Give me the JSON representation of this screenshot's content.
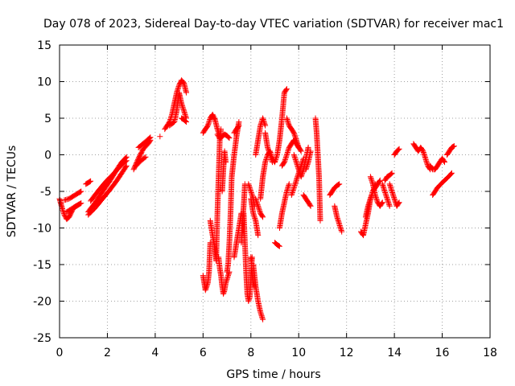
{
  "chart_data": {
    "type": "scatter",
    "title": "Day 078 of 2023, Sidereal Day-to-day VTEC variation (SDTVAR) for receiver mac1",
    "xlabel": "GPS time / hours",
    "ylabel": "SDTVAR / TECUs",
    "xlim": [
      0,
      18
    ],
    "ylim": [
      -25,
      15
    ],
    "xticks": [
      0,
      2,
      4,
      6,
      8,
      10,
      12,
      14,
      16,
      18
    ],
    "yticks": [
      -25,
      -20,
      -15,
      -10,
      -5,
      0,
      5,
      10,
      15
    ],
    "grid": true,
    "marker": "plus",
    "color": "#ff0000",
    "series": [
      {
        "name": "seg01",
        "x": [
          0.0,
          0.1,
          0.2,
          0.3,
          0.4,
          0.5,
          0.6,
          0.7,
          0.8
        ],
        "y": [
          -6.0,
          -7.2,
          -8.2,
          -8.8,
          -8.5,
          -7.8,
          -7.2,
          -7.0,
          -6.8
        ]
      },
      {
        "name": "seg02",
        "x": [
          0.2,
          0.4,
          0.6,
          0.8,
          0.9
        ],
        "y": [
          -6.2,
          -6.0,
          -5.6,
          -5.2,
          -5.0
        ]
      },
      {
        "name": "seg03",
        "x": [
          0.3,
          0.5,
          0.7,
          0.8,
          0.9
        ],
        "y": [
          -7.8,
          -7.4,
          -7.0,
          -6.8,
          -6.6
        ]
      },
      {
        "name": "seg04",
        "x": [
          1.2,
          1.5,
          1.8,
          2.1,
          2.4,
          2.6,
          2.8
        ],
        "y": [
          -7.8,
          -6.5,
          -5.0,
          -3.6,
          -2.0,
          -1.0,
          -0.3
        ]
      },
      {
        "name": "seg05",
        "x": [
          1.2,
          1.5,
          1.8,
          2.1,
          2.4,
          2.6,
          2.8
        ],
        "y": [
          -8.2,
          -7.2,
          -6.0,
          -4.8,
          -3.5,
          -2.5,
          -1.5
        ]
      },
      {
        "name": "seg06",
        "x": [
          1.3,
          1.6,
          1.9,
          2.2,
          2.5,
          2.8
        ],
        "y": [
          -6.3,
          -5.0,
          -3.8,
          -2.8,
          -1.7,
          -0.8
        ]
      },
      {
        "name": "seg07",
        "x": [
          1.1,
          1.2,
          1.3
        ],
        "y": [
          -4.0,
          -3.8,
          -3.6
        ]
      },
      {
        "name": "seg08",
        "x": [
          3.1,
          3.3,
          3.5,
          3.7,
          3.8
        ],
        "y": [
          -2.0,
          -0.5,
          0.8,
          1.5,
          2.0
        ]
      },
      {
        "name": "seg09",
        "x": [
          3.3,
          3.6,
          3.8
        ],
        "y": [
          1.0,
          1.8,
          2.4
        ]
      },
      {
        "name": "seg10",
        "x": [
          3.2,
          3.4,
          3.6
        ],
        "y": [
          -1.5,
          -0.8,
          -0.3
        ]
      },
      {
        "name": "seg11",
        "x": [
          4.2
        ],
        "y": [
          2.5
        ]
      },
      {
        "name": "seg12",
        "x": [
          4.4,
          4.6,
          4.7,
          4.8,
          4.9,
          5.0,
          5.1,
          5.2,
          5.3
        ],
        "y": [
          3.5,
          4.5,
          5.5,
          7.0,
          8.5,
          9.5,
          10.2,
          9.8,
          8.5
        ]
      },
      {
        "name": "seg13",
        "x": [
          4.6,
          4.8,
          4.9,
          5.0,
          5.1,
          5.2,
          5.3
        ],
        "y": [
          4.0,
          4.5,
          6.0,
          8.5,
          7.0,
          6.0,
          5.0
        ]
      },
      {
        "name": "seg14",
        "x": [
          5.1,
          5.2,
          5.3
        ],
        "y": [
          5.0,
          4.8,
          4.5
        ]
      },
      {
        "name": "seg15",
        "x": [
          6.0,
          6.1,
          6.2,
          6.3,
          6.4,
          6.5,
          6.6,
          6.7
        ],
        "y": [
          3.0,
          3.5,
          4.0,
          5.0,
          5.5,
          4.8,
          3.5,
          2.5
        ]
      },
      {
        "name": "seg16",
        "x": [
          6.6,
          6.7,
          6.8,
          6.9,
          7.0,
          7.1
        ],
        "y": [
          2.8,
          2.2,
          2.5,
          2.8,
          2.6,
          2.3
        ]
      },
      {
        "name": "seg17",
        "x": [
          6.0,
          6.05,
          6.1,
          6.15,
          6.2,
          6.25,
          6.3
        ],
        "y": [
          -16.5,
          -17.5,
          -18.5,
          -18.0,
          -17.5,
          -16.0,
          -12.0
        ]
      },
      {
        "name": "seg18",
        "x": [
          6.3,
          6.4,
          6.5,
          6.55,
          6.6,
          6.65,
          6.7,
          6.75
        ],
        "y": [
          -9.0,
          -11.0,
          -13.0,
          -14.5,
          -8.0,
          -3.0,
          2.0,
          3.5
        ]
      },
      {
        "name": "seg19",
        "x": [
          6.65,
          6.7,
          6.75,
          6.8,
          6.85,
          6.9,
          6.95,
          7.0,
          7.05,
          7.1
        ],
        "y": [
          -14.0,
          -15.5,
          -16.5,
          -18.0,
          -19.0,
          -18.5,
          -17.5,
          -17.0,
          -16.5,
          -16.0
        ]
      },
      {
        "name": "seg20",
        "x": [
          6.8,
          6.85,
          6.9,
          6.95
        ],
        "y": [
          -5.0,
          -2.0,
          0.5,
          -1.0
        ]
      },
      {
        "name": "seg21",
        "x": [
          7.0,
          7.05,
          7.1,
          7.15,
          7.2,
          7.3,
          7.4,
          7.5
        ],
        "y": [
          -16.0,
          -15.0,
          -12.0,
          -8.0,
          -3.0,
          0.0,
          2.5,
          4.5
        ]
      },
      {
        "name": "seg22",
        "x": [
          7.3,
          7.4,
          7.5,
          7.6
        ],
        "y": [
          -14.0,
          -12.0,
          -10.0,
          -8.0
        ]
      },
      {
        "name": "seg23",
        "x": [
          7.3,
          7.4,
          7.5
        ],
        "y": [
          3.0,
          3.5,
          4.0
        ]
      },
      {
        "name": "seg24",
        "x": [
          7.6,
          7.65,
          7.7,
          7.75
        ],
        "y": [
          -12.0,
          -9.0,
          -7.0,
          -4.0
        ]
      },
      {
        "name": "seg25",
        "x": [
          7.7,
          7.75,
          7.8,
          7.85,
          7.9,
          7.95,
          8.0,
          8.05
        ],
        "y": [
          -8.0,
          -12.0,
          -16.0,
          -19.0,
          -20.0,
          -19.5,
          -17.0,
          -14.0
        ]
      },
      {
        "name": "seg26",
        "x": [
          7.9,
          8.0,
          8.1,
          8.15
        ],
        "y": [
          -4.0,
          -5.0,
          -6.0,
          -7.0
        ]
      },
      {
        "name": "seg27",
        "x": [
          8.0,
          8.1,
          8.2,
          8.3
        ],
        "y": [
          -6.0,
          -8.0,
          -9.0,
          -11.0
        ]
      },
      {
        "name": "seg28",
        "x": [
          8.0,
          8.05,
          8.1,
          8.15
        ],
        "y": [
          -14.0,
          -16.0,
          -17.5,
          -18.0
        ]
      },
      {
        "name": "seg29",
        "x": [
          8.1,
          8.2,
          8.3,
          8.4,
          8.5
        ],
        "y": [
          -15.0,
          -18.0,
          -20.0,
          -21.5,
          -22.5
        ]
      },
      {
        "name": "seg30",
        "x": [
          8.2,
          8.3,
          8.4,
          8.5
        ],
        "y": [
          -6.0,
          -7.0,
          -8.0,
          -8.5
        ]
      },
      {
        "name": "seg31",
        "x": [
          8.2,
          8.3,
          8.4,
          8.5,
          8.6
        ],
        "y": [
          0.0,
          2.0,
          4.0,
          5.0,
          4.0
        ]
      },
      {
        "name": "seg32",
        "x": [
          8.4,
          8.5,
          8.6,
          8.7,
          8.8,
          8.9,
          9.0
        ],
        "y": [
          -6.0,
          -3.0,
          -1.0,
          0.0,
          0.5,
          -0.5,
          -1.0
        ]
      },
      {
        "name": "seg33",
        "x": [
          8.6,
          8.7,
          8.8,
          8.9
        ],
        "y": [
          3.0,
          1.0,
          0.0,
          -1.0
        ]
      },
      {
        "name": "seg34",
        "x": [
          8.9,
          9.0,
          9.1,
          9.2,
          9.3,
          9.4,
          9.5
        ],
        "y": [
          -0.5,
          -1.0,
          0.0,
          2.0,
          5.0,
          8.5,
          9.0
        ]
      },
      {
        "name": "seg35",
        "x": [
          9.0,
          9.1,
          9.2
        ],
        "y": [
          -12.0,
          -12.3,
          -12.5
        ]
      },
      {
        "name": "seg36",
        "x": [
          9.2,
          9.3,
          9.4,
          9.5,
          9.6
        ],
        "y": [
          -10.0,
          -8.0,
          -6.5,
          -5.0,
          -4.0
        ]
      },
      {
        "name": "seg37",
        "x": [
          9.3,
          9.4,
          9.5,
          9.6,
          9.7,
          9.8,
          9.9,
          10.0
        ],
        "y": [
          -1.5,
          -1.0,
          0.0,
          1.0,
          1.5,
          2.0,
          1.5,
          1.0
        ]
      },
      {
        "name": "seg38",
        "x": [
          9.5,
          9.6,
          9.7,
          9.8,
          9.9,
          10.0,
          10.1
        ],
        "y": [
          5.0,
          4.0,
          3.5,
          3.0,
          2.0,
          1.0,
          0.5
        ]
      },
      {
        "name": "seg39",
        "x": [
          9.7,
          9.8,
          9.9,
          10.0,
          10.1,
          10.2
        ],
        "y": [
          -5.5,
          -4.5,
          -3.5,
          -2.5,
          -1.5,
          -0.5
        ]
      },
      {
        "name": "seg40",
        "x": [
          9.8,
          9.9,
          10.0,
          10.1,
          10.2,
          10.3,
          10.4
        ],
        "y": [
          0.0,
          -1.0,
          -2.0,
          -3.0,
          -2.0,
          -0.5,
          1.0
        ]
      },
      {
        "name": "seg41",
        "x": [
          10.2,
          10.3,
          10.4,
          10.5
        ],
        "y": [
          -5.5,
          -6.0,
          -6.5,
          -7.0
        ]
      },
      {
        "name": "seg42",
        "x": [
          10.3,
          10.4,
          10.5
        ],
        "y": [
          -2.0,
          -1.0,
          0.5
        ]
      },
      {
        "name": "seg43",
        "x": [
          10.7,
          10.75,
          10.8,
          10.85,
          10.9
        ],
        "y": [
          5.0,
          3.0,
          0.0,
          -3.0,
          -9.0
        ]
      },
      {
        "name": "seg44",
        "x": [
          11.3,
          11.4,
          11.5,
          11.6,
          11.7
        ],
        "y": [
          -5.5,
          -5.0,
          -4.5,
          -4.2,
          -4.0
        ]
      },
      {
        "name": "seg45",
        "x": [
          11.5,
          11.6,
          11.7,
          11.8
        ],
        "y": [
          -7.0,
          -8.5,
          -9.5,
          -10.5
        ]
      },
      {
        "name": "seg46",
        "x": [
          12.6,
          12.7,
          12.8,
          12.9,
          13.0,
          13.1,
          13.2
        ],
        "y": [
          -10.5,
          -11.0,
          -9.5,
          -8.0,
          -6.0,
          -5.0,
          -4.0
        ]
      },
      {
        "name": "seg47",
        "x": [
          12.8,
          12.9,
          13.0,
          13.1,
          13.2,
          13.3,
          13.4
        ],
        "y": [
          -8.5,
          -7.0,
          -6.0,
          -5.0,
          -4.5,
          -4.0,
          -3.5
        ]
      },
      {
        "name": "seg48",
        "x": [
          13.0,
          13.1,
          13.2,
          13.3,
          13.4,
          13.5
        ],
        "y": [
          -3.0,
          -4.0,
          -5.5,
          -6.5,
          -7.0,
          -6.5
        ]
      },
      {
        "name": "seg49",
        "x": [
          13.5,
          13.6,
          13.7,
          13.8
        ],
        "y": [
          -4.0,
          -5.0,
          -6.0,
          -7.0
        ]
      },
      {
        "name": "seg50",
        "x": [
          13.6,
          13.7,
          13.8,
          13.9
        ],
        "y": [
          -3.5,
          -3.0,
          -2.8,
          -2.5
        ]
      },
      {
        "name": "seg51",
        "x": [
          13.8,
          13.9,
          14.0,
          14.1,
          14.2
        ],
        "y": [
          -4.0,
          -5.0,
          -6.0,
          -7.0,
          -6.5
        ]
      },
      {
        "name": "seg52",
        "x": [
          14.0,
          14.1,
          14.2
        ],
        "y": [
          0.0,
          0.5,
          0.8
        ]
      },
      {
        "name": "seg53",
        "x": [
          14.8,
          14.9,
          15.0,
          15.1,
          15.2,
          15.3,
          15.4,
          15.5
        ],
        "y": [
          1.5,
          1.0,
          0.5,
          1.0,
          0.5,
          -0.5,
          -1.5,
          -2.0
        ]
      },
      {
        "name": "seg54",
        "x": [
          15.5,
          15.6,
          15.7,
          15.8,
          15.9,
          16.0,
          16.1
        ],
        "y": [
          -1.5,
          -2.0,
          -2.0,
          -1.5,
          -1.0,
          -0.5,
          -1.0
        ]
      },
      {
        "name": "seg55",
        "x": [
          15.6,
          15.8,
          16.0,
          16.2,
          16.4
        ],
        "y": [
          -5.5,
          -4.5,
          -3.8,
          -3.2,
          -2.5
        ]
      },
      {
        "name": "seg56",
        "x": [
          16.2,
          16.3,
          16.4,
          16.5
        ],
        "y": [
          0.0,
          0.5,
          1.0,
          1.2
        ]
      }
    ]
  }
}
